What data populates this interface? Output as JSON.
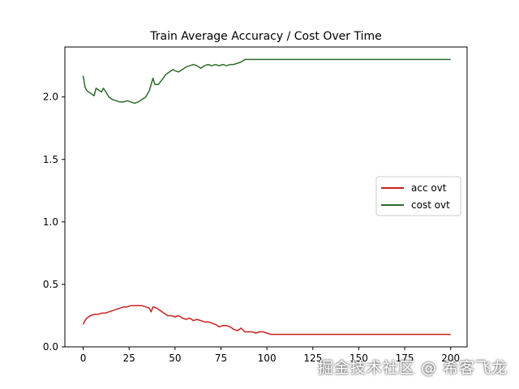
{
  "chart_data": {
    "type": "line",
    "title": "Train Average Accuracy / Cost Over Time",
    "xlabel": "",
    "ylabel": "",
    "xlim": [
      -9.95,
      208.95
    ],
    "ylim": [
      0.0,
      2.4
    ],
    "xticks": [
      0,
      25,
      50,
      75,
      100,
      125,
      150,
      175,
      200
    ],
    "yticks": [
      0.0,
      0.5,
      1.0,
      1.5,
      2.0
    ],
    "xtick_labels": [
      "0",
      "25",
      "50",
      "75",
      "100",
      "125",
      "150",
      "175",
      "200"
    ],
    "ytick_labels": [
      "0.0",
      "0.5",
      "1.0",
      "1.5",
      "2.0"
    ],
    "grid": false,
    "legend_position": "center-right",
    "series": [
      {
        "name": "acc ovt",
        "color": "#c8201e",
        "points": [
          [
            0,
            0.18
          ],
          [
            1,
            0.21
          ],
          [
            2,
            0.23
          ],
          [
            4,
            0.25
          ],
          [
            6,
            0.26
          ],
          [
            8,
            0.26
          ],
          [
            10,
            0.27
          ],
          [
            12,
            0.27
          ],
          [
            14,
            0.28
          ],
          [
            16,
            0.29
          ],
          [
            18,
            0.3
          ],
          [
            20,
            0.31
          ],
          [
            22,
            0.32
          ],
          [
            24,
            0.32
          ],
          [
            26,
            0.33
          ],
          [
            28,
            0.33
          ],
          [
            30,
            0.33
          ],
          [
            32,
            0.33
          ],
          [
            34,
            0.32
          ],
          [
            36,
            0.31
          ],
          [
            37,
            0.28
          ],
          [
            38,
            0.32
          ],
          [
            40,
            0.31
          ],
          [
            42,
            0.29
          ],
          [
            44,
            0.27
          ],
          [
            46,
            0.25
          ],
          [
            48,
            0.25
          ],
          [
            50,
            0.24
          ],
          [
            52,
            0.25
          ],
          [
            54,
            0.23
          ],
          [
            56,
            0.22
          ],
          [
            58,
            0.23
          ],
          [
            60,
            0.21
          ],
          [
            62,
            0.22
          ],
          [
            64,
            0.21
          ],
          [
            66,
            0.2
          ],
          [
            68,
            0.2
          ],
          [
            70,
            0.19
          ],
          [
            72,
            0.18
          ],
          [
            74,
            0.16
          ],
          [
            76,
            0.17
          ],
          [
            78,
            0.17
          ],
          [
            80,
            0.16
          ],
          [
            82,
            0.14
          ],
          [
            84,
            0.13
          ],
          [
            86,
            0.15
          ],
          [
            88,
            0.12
          ],
          [
            90,
            0.12
          ],
          [
            92,
            0.12
          ],
          [
            94,
            0.11
          ],
          [
            96,
            0.12
          ],
          [
            98,
            0.12
          ],
          [
            100,
            0.11
          ],
          [
            102,
            0.1
          ],
          [
            105,
            0.1
          ],
          [
            110,
            0.1
          ],
          [
            150,
            0.1
          ],
          [
            200,
            0.1
          ]
        ]
      },
      {
        "name": "cost ovt",
        "color": "#2e6b2e",
        "points": [
          [
            0,
            2.17
          ],
          [
            1,
            2.08
          ],
          [
            2,
            2.05
          ],
          [
            4,
            2.03
          ],
          [
            6,
            2.01
          ],
          [
            7,
            2.07
          ],
          [
            8,
            2.06
          ],
          [
            10,
            2.04
          ],
          [
            11,
            2.07
          ],
          [
            12,
            2.05
          ],
          [
            14,
            2.0
          ],
          [
            16,
            1.98
          ],
          [
            18,
            1.97
          ],
          [
            20,
            1.96
          ],
          [
            22,
            1.96
          ],
          [
            24,
            1.97
          ],
          [
            26,
            1.96
          ],
          [
            28,
            1.95
          ],
          [
            30,
            1.96
          ],
          [
            32,
            1.98
          ],
          [
            34,
            2.0
          ],
          [
            36,
            2.05
          ],
          [
            37,
            2.1
          ],
          [
            38,
            2.15
          ],
          [
            39,
            2.1
          ],
          [
            41,
            2.1
          ],
          [
            43,
            2.14
          ],
          [
            45,
            2.18
          ],
          [
            47,
            2.2
          ],
          [
            49,
            2.22
          ],
          [
            50,
            2.21
          ],
          [
            52,
            2.2
          ],
          [
            54,
            2.22
          ],
          [
            56,
            2.24
          ],
          [
            58,
            2.25
          ],
          [
            60,
            2.26
          ],
          [
            62,
            2.25
          ],
          [
            64,
            2.23
          ],
          [
            66,
            2.25
          ],
          [
            68,
            2.26
          ],
          [
            70,
            2.25
          ],
          [
            72,
            2.26
          ],
          [
            74,
            2.25
          ],
          [
            76,
            2.26
          ],
          [
            78,
            2.25
          ],
          [
            80,
            2.26
          ],
          [
            82,
            2.26
          ],
          [
            84,
            2.27
          ],
          [
            86,
            2.28
          ],
          [
            88,
            2.3
          ],
          [
            90,
            2.3
          ],
          [
            100,
            2.3
          ],
          [
            150,
            2.3
          ],
          [
            200,
            2.3
          ]
        ]
      }
    ]
  },
  "watermark": "掘金技术社区 @ 希客飞龙"
}
